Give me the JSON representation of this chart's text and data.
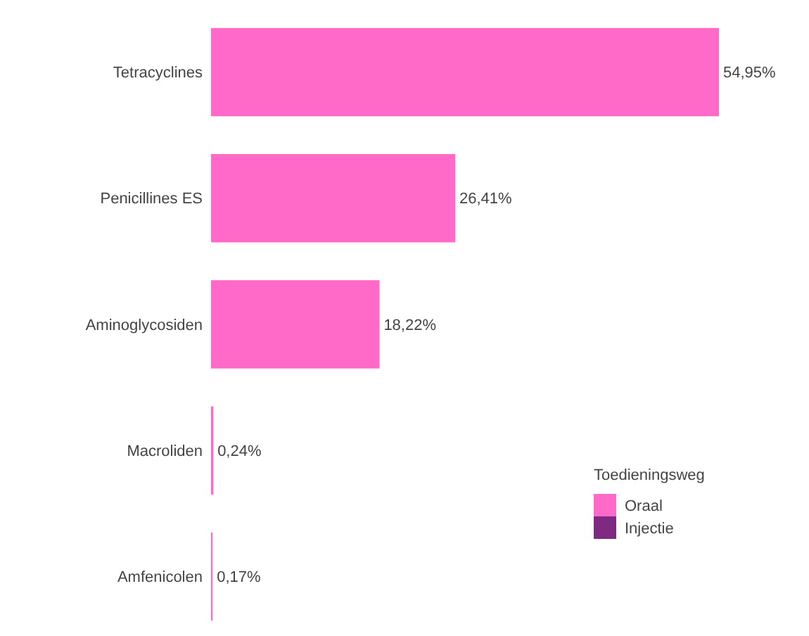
{
  "chart_data": {
    "type": "bar",
    "orientation": "horizontal",
    "categories": [
      "Tetracyclines",
      "Penicillines ES",
      "Aminoglycosiden",
      "Macroliden",
      "Amfenicolen"
    ],
    "series": [
      {
        "name": "Oraal",
        "color": "#ff6ac8",
        "values": [
          54.95,
          26.41,
          18.22,
          0.24,
          0.17
        ],
        "value_labels": [
          "54,95%",
          "26,41%",
          "18,22%",
          "0,24%",
          "0,17%"
        ]
      },
      {
        "name": "Injectie",
        "color": "#7e2a82",
        "values": [
          null,
          null,
          null,
          null,
          null
        ]
      }
    ],
    "legend_title": "Toedieningsweg",
    "legend": "bottom right"
  }
}
